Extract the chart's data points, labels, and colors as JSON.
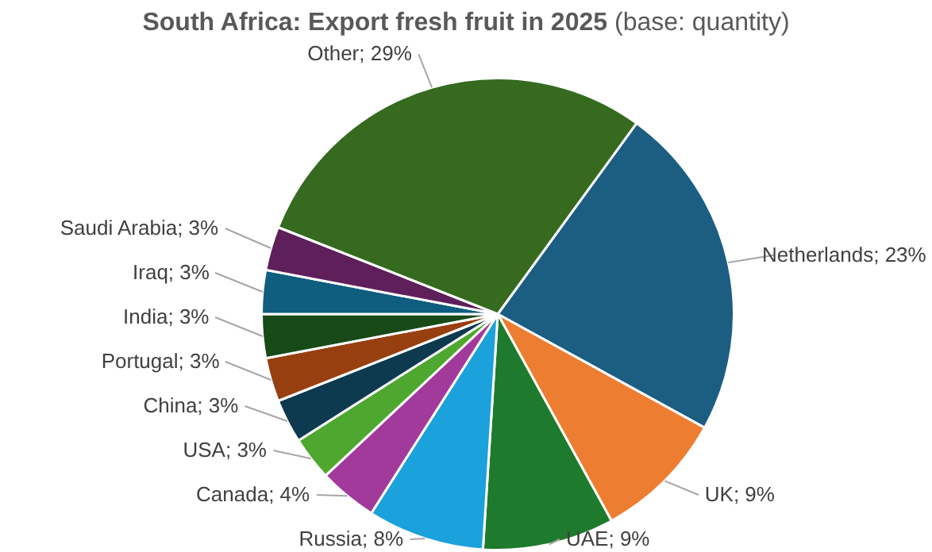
{
  "chart_data": {
    "type": "pie",
    "title": "South Africa: Export fresh fruit in 2025",
    "subtitle": "(base: quantity)",
    "categories": [
      "Netherlands",
      "UK",
      "UAE",
      "Russia",
      "Canada",
      "USA",
      "China",
      "Portugal",
      "India",
      "Iraq",
      "Saudi Arabia",
      "Other"
    ],
    "values": [
      23,
      9,
      9,
      8,
      4,
      3,
      3,
      3,
      3,
      3,
      3,
      29
    ],
    "value_labels": [
      "23%",
      "9%",
      "9%",
      "8%",
      "4%",
      "3%",
      "3%",
      "3%",
      "3%",
      "3%",
      "3%",
      "29%"
    ],
    "colors": [
      "#1b5e82",
      "#ed7d31",
      "#1e7a2c",
      "#1ba1dc",
      "#a23a9c",
      "#4ea72e",
      "#0e3a4f",
      "#983f10",
      "#174a17",
      "#0f5d7f",
      "#5e1f5a",
      "#356a1f"
    ],
    "legend": false
  }
}
